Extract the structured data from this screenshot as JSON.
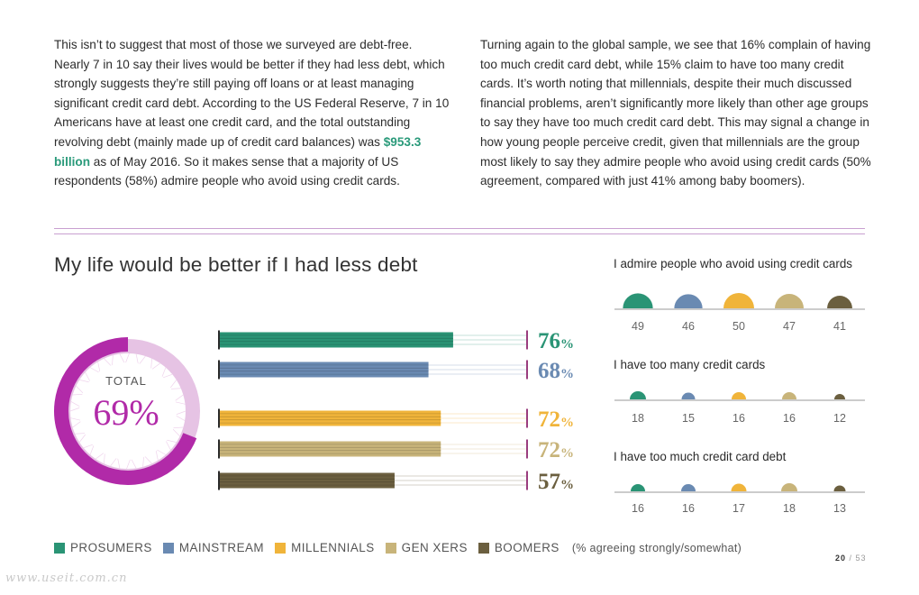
{
  "text": {
    "left_paragraph": {
      "before": "This isn’t to suggest that most of those we surveyed are debt-free. Nearly 7 in 10 say their lives would be better if they had less debt, which strongly suggests they’re still paying off loans or at least managing significant credit card debt. According to the US Federal Reserve, 7 in 10 Americans have at least one credit card, and the total outstanding revolving debt (mainly made up of credit card balances) was ",
      "highlight": "$953.3 billion",
      "after": " as of May 2016. So it makes sense that a majority of US respondents (58%) admire people who avoid using credit cards."
    },
    "right_paragraph": "Turning again to the global sample, we see that 16% complain of having too much credit card debt, while 15% claim to have too many credit cards. It’s worth noting that millennials, despite their much discussed financial problems, aren’t significantly more likely than other age groups to say they have too much credit card debt. This may signal a change in how young people perceive credit, given that millennials are the group most likely to say they admire people who avoid using credit cards (50% agreement, compared with just 41% among baby boomers)."
  },
  "colors": {
    "prosumers": "#2a9475",
    "mainstream": "#6a8ab2",
    "millennials": "#f0b43a",
    "genxers": "#c8b47a",
    "boomers": "#6b5f3f",
    "donut": "#b12aa8",
    "divider": "#c9a0d0",
    "axis": "#cccccc"
  },
  "legend": {
    "items": [
      "PROSUMERS",
      "MAINSTREAM",
      "MILLENNIALS",
      "GEN XERS",
      "BOOMERS"
    ],
    "note": "(% agreeing strongly/somewhat)"
  },
  "page": {
    "current": "20",
    "total": "53"
  },
  "watermark": "www.useit.com.cn",
  "chart_data": [
    {
      "type": "pie",
      "title": "My life would be better if I had less debt",
      "label": "TOTAL",
      "values": [
        69
      ],
      "display": "69%"
    },
    {
      "type": "bar",
      "orientation": "horizontal",
      "title": "My life would be better if I had less debt",
      "categories": [
        "PROSUMERS",
        "MAINSTREAM",
        "MILLENNIALS",
        "GEN XERS",
        "BOOMERS"
      ],
      "values": [
        76,
        68,
        72,
        72,
        57
      ],
      "value_suffix": "%",
      "xlim": [
        0,
        100
      ]
    },
    {
      "type": "scatter",
      "title": "I admire people who avoid using credit cards",
      "categories": [
        "PROSUMERS",
        "MAINSTREAM",
        "MILLENNIALS",
        "GEN XERS",
        "BOOMERS"
      ],
      "values": [
        49,
        46,
        50,
        47,
        41
      ]
    },
    {
      "type": "scatter",
      "title": "I have too many credit cards",
      "categories": [
        "PROSUMERS",
        "MAINSTREAM",
        "MILLENNIALS",
        "GEN XERS",
        "BOOMERS"
      ],
      "values": [
        18,
        15,
        16,
        16,
        12
      ]
    },
    {
      "type": "scatter",
      "title": "I have too much credit card debt",
      "categories": [
        "PROSUMERS",
        "MAINSTREAM",
        "MILLENNIALS",
        "GEN XERS",
        "BOOMERS"
      ],
      "values": [
        16,
        16,
        17,
        18,
        13
      ]
    }
  ]
}
